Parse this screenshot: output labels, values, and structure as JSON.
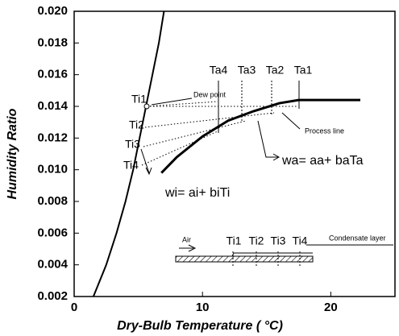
{
  "chart_data": {
    "type": "line",
    "xlabel": "Dry-Bulb Temperature ( °C)",
    "ylabel": "Humidity Ratio",
    "xlim": [
      0,
      25
    ],
    "ylim": [
      0.002,
      0.02
    ],
    "xticks": [
      0,
      10,
      20
    ],
    "yticks": [
      0.002,
      0.004,
      0.006,
      0.008,
      {
        "value": 0.01,
        "label": "0.010"
      },
      0.012,
      0.014,
      0.016,
      0.018,
      {
        "value": 0.02,
        "label": "0.020"
      }
    ],
    "series": [
      {
        "color": "#000000",
        "x": [
          1.5,
          2.5,
          3.3,
          4.0,
          4.6,
          5.1,
          5.6,
          6.1,
          6.6,
          7.0
        ],
        "values": [
          0.002,
          0.004,
          0.006,
          0.008,
          0.01,
          0.012,
          0.014,
          0.016,
          0.018,
          0.02
        ]
      },
      {
        "color": "#000000",
        "x": [
          6.8,
          8,
          10,
          12,
          14,
          16,
          17.5,
          22.3
        ],
        "values": [
          0.0098,
          0.0108,
          0.0121,
          0.0131,
          0.0137,
          0.0142,
          0.0144,
          0.0144
        ]
      }
    ],
    "annotations": [
      "Ta4",
      "Ta3",
      "Ta2",
      "Ta1",
      "Dew point",
      "Ti1",
      "Ti2",
      "Ti3",
      "Ti4",
      "Process line",
      "wa= aa+ baTa",
      "wi= ai+ biTi",
      "Air",
      "Ti1",
      "Ti2",
      "Ti3",
      "Ti4",
      "Condensate layer"
    ]
  }
}
